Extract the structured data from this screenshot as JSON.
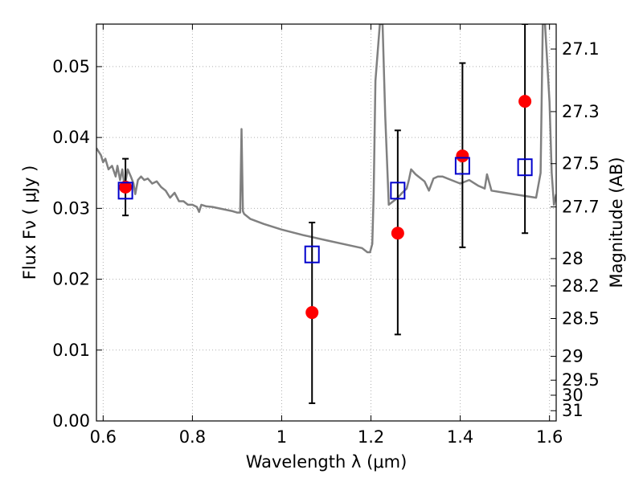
{
  "chart_data": {
    "type": "scatter",
    "title": "",
    "xlabel": "Wavelength  λ (μm)",
    "ylabel": "Flux  Fν  ( μJy )",
    "ylabel_right": "Magnitude (AB)",
    "xlim": [
      0.585,
      1.615
    ],
    "ylim": [
      0.0,
      0.056
    ],
    "grid": true,
    "grid_style": "dotted",
    "x_ticks": [
      0.6,
      0.8,
      1.0,
      1.2,
      1.4,
      1.6
    ],
    "x_tick_labels": [
      "0.6",
      "0.8",
      "1",
      "1.2",
      "1.4",
      "1.6"
    ],
    "y_ticks": [
      0.0,
      0.01,
      0.02,
      0.03,
      0.04,
      0.05
    ],
    "y_tick_labels": [
      "0.00",
      "0.01",
      "0.02",
      "0.03",
      "0.04",
      "0.05"
    ],
    "right_ticks": [
      {
        "label": "27.1",
        "mag": 27.1
      },
      {
        "label": "27.3",
        "mag": 27.3
      },
      {
        "label": "27.5",
        "mag": 27.5
      },
      {
        "label": "27.7",
        "mag": 27.7
      },
      {
        "label": "28",
        "mag": 28.0
      },
      {
        "label": "28.2",
        "mag": 28.2
      },
      {
        "label": "28.5",
        "mag": 28.5
      },
      {
        "label": "29",
        "mag": 29.0
      },
      {
        "label": "29.5",
        "mag": 29.5
      },
      {
        "label": "30",
        "mag": 30.0
      },
      {
        "label": "31",
        "mag": 31.0
      }
    ],
    "colors": {
      "observed": "#ff0000",
      "model": "#0000cc",
      "sed": "#808080",
      "errorbar": "#000000",
      "grid": "#b0b0b0"
    },
    "series": [
      {
        "kind": "sed_line",
        "x": [
          0.585,
          0.595,
          0.6,
          0.605,
          0.612,
          0.62,
          0.628,
          0.632,
          0.638,
          0.643,
          0.648,
          0.655,
          0.662,
          0.668,
          0.672,
          0.678,
          0.685,
          0.692,
          0.7,
          0.71,
          0.72,
          0.73,
          0.74,
          0.75,
          0.76,
          0.77,
          0.78,
          0.79,
          0.8,
          0.81,
          0.815,
          0.82,
          0.83,
          0.845,
          0.86,
          0.875,
          0.89,
          0.9,
          0.907,
          0.91,
          0.913,
          0.916,
          0.93,
          0.96,
          1.0,
          1.05,
          1.1,
          1.15,
          1.18,
          1.192,
          1.198,
          1.203,
          1.206,
          1.21,
          1.22,
          1.226,
          1.232,
          1.24,
          1.25,
          1.26,
          1.27,
          1.28,
          1.285,
          1.29,
          1.3,
          1.31,
          1.32,
          1.33,
          1.34,
          1.35,
          1.36,
          1.38,
          1.4,
          1.42,
          1.44,
          1.455,
          1.46,
          1.47,
          1.5,
          1.54,
          1.57,
          1.58,
          1.585,
          1.59,
          1.6,
          1.605,
          1.61,
          1.615
        ],
        "y": [
          0.0385,
          0.0375,
          0.0365,
          0.037,
          0.0355,
          0.036,
          0.0345,
          0.036,
          0.034,
          0.0355,
          0.033,
          0.0355,
          0.0345,
          0.0335,
          0.032,
          0.034,
          0.0345,
          0.034,
          0.0342,
          0.0335,
          0.0338,
          0.033,
          0.0325,
          0.0315,
          0.0322,
          0.031,
          0.031,
          0.0305,
          0.0305,
          0.0302,
          0.0295,
          0.0305,
          0.0303,
          0.0302,
          0.03,
          0.0298,
          0.0296,
          0.0294,
          0.0294,
          0.0412,
          0.0296,
          0.0292,
          0.0285,
          0.0278,
          0.027,
          0.0262,
          0.0255,
          0.0248,
          0.0244,
          0.0238,
          0.0238,
          0.025,
          0.032,
          0.048,
          0.056,
          0.056,
          0.043,
          0.0305,
          0.031,
          0.0315,
          0.0322,
          0.0328,
          0.034,
          0.0355,
          0.0348,
          0.0343,
          0.0338,
          0.0325,
          0.0342,
          0.0345,
          0.0345,
          0.034,
          0.0335,
          0.034,
          0.0332,
          0.0328,
          0.0348,
          0.0325,
          0.0322,
          0.0318,
          0.0315,
          0.035,
          0.056,
          0.056,
          0.045,
          0.035,
          0.0305,
          0.032
        ]
      },
      {
        "kind": "observed",
        "marker": "circle",
        "x": [
          0.65,
          1.068,
          1.26,
          1.405,
          1.545
        ],
        "y": [
          0.033,
          0.0153,
          0.0265,
          0.0374,
          0.0451
        ],
        "yerr_low": [
          0.029,
          0.0025,
          0.0122,
          0.0245,
          0.0265
        ],
        "yerr_high": [
          0.037,
          0.028,
          0.041,
          0.0505,
          0.056
        ]
      },
      {
        "kind": "model",
        "marker": "square",
        "x": [
          0.65,
          1.068,
          1.26,
          1.405,
          1.545
        ],
        "y": [
          0.0325,
          0.0235,
          0.0325,
          0.036,
          0.0358
        ]
      }
    ]
  }
}
